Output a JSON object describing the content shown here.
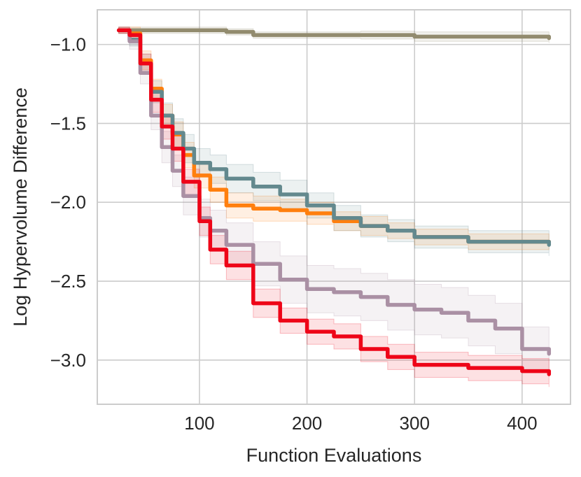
{
  "chart_data": {
    "type": "line",
    "title": "",
    "xlabel": "Function Evaluations",
    "ylabel": "Log Hypervolume Difference",
    "xlim": [
      5,
      445
    ],
    "ylim": [
      -3.28,
      -0.78
    ],
    "grid": true,
    "legend": "none",
    "x_ticks": [
      100,
      200,
      300,
      400
    ],
    "x_tick_labels": [
      "100",
      "200",
      "300",
      "400"
    ],
    "y_ticks": [
      -1.0,
      -1.5,
      -2.0,
      -2.5,
      -3.0
    ],
    "y_tick_labels": [
      "−1.0",
      "−1.5",
      "−2.0",
      "−2.5",
      "−3.0"
    ],
    "series": [
      {
        "name": "series-khaki",
        "color": "#928B6E",
        "x": [
          25,
          75,
          125,
          150,
          250,
          300,
          425
        ],
        "y": [
          -0.91,
          -0.91,
          -0.92,
          -0.94,
          -0.94,
          -0.95,
          -0.96
        ],
        "band": [
          0.02,
          0.02,
          0.02,
          0.02,
          0.025,
          0.03,
          0.03
        ]
      },
      {
        "name": "series-orange",
        "color": "#FF7F0E",
        "x": [
          25,
          35,
          45,
          55,
          65,
          75,
          85,
          95,
          110,
          125,
          150,
          175,
          200,
          225,
          250,
          275,
          300,
          350,
          425
        ],
        "y": [
          -0.91,
          -0.93,
          -1.1,
          -1.28,
          -1.45,
          -1.57,
          -1.7,
          -1.83,
          -1.92,
          -2.02,
          -2.04,
          -2.05,
          -2.07,
          -2.12,
          -2.15,
          -2.18,
          -2.22,
          -2.25,
          -2.25
        ],
        "band": [
          0.02,
          0.04,
          0.06,
          0.06,
          0.07,
          0.08,
          0.08,
          0.08,
          0.08,
          0.08,
          0.08,
          0.07,
          0.07,
          0.06,
          0.06,
          0.05,
          0.05,
          0.05,
          0.05
        ]
      },
      {
        "name": "series-slate",
        "color": "#63898E",
        "x": [
          25,
          35,
          45,
          55,
          65,
          75,
          85,
          95,
          110,
          125,
          150,
          175,
          200,
          225,
          250,
          275,
          300,
          350,
          425
        ],
        "y": [
          -0.91,
          -0.97,
          -1.12,
          -1.3,
          -1.45,
          -1.56,
          -1.66,
          -1.75,
          -1.79,
          -1.85,
          -1.9,
          -1.95,
          -2.02,
          -2.1,
          -2.15,
          -2.18,
          -2.22,
          -2.25,
          -2.27
        ],
        "band": [
          0.02,
          0.04,
          0.06,
          0.07,
          0.08,
          0.09,
          0.09,
          0.09,
          0.09,
          0.09,
          0.09,
          0.09,
          0.08,
          0.08,
          0.07,
          0.07,
          0.07,
          0.07,
          0.07
        ]
      },
      {
        "name": "series-mauve",
        "color": "#AA90A4",
        "x": [
          25,
          35,
          45,
          55,
          65,
          75,
          85,
          100,
          110,
          125,
          150,
          175,
          200,
          225,
          250,
          275,
          300,
          325,
          350,
          375,
          400,
          425
        ],
        "y": [
          -0.91,
          -0.98,
          -1.18,
          -1.45,
          -1.65,
          -1.8,
          -1.96,
          -2.1,
          -2.18,
          -2.27,
          -2.39,
          -2.49,
          -2.55,
          -2.57,
          -2.6,
          -2.65,
          -2.68,
          -2.7,
          -2.75,
          -2.8,
          -2.93,
          -2.96
        ],
        "band": [
          0.02,
          0.05,
          0.07,
          0.09,
          0.1,
          0.1,
          0.12,
          0.12,
          0.13,
          0.14,
          0.14,
          0.15,
          0.15,
          0.15,
          0.15,
          0.16,
          0.16,
          0.16,
          0.16,
          0.16,
          0.14,
          0.1
        ]
      },
      {
        "name": "series-red",
        "color": "#EE0518",
        "x": [
          25,
          35,
          45,
          55,
          65,
          75,
          85,
          100,
          110,
          125,
          150,
          175,
          200,
          225,
          250,
          275,
          300,
          350,
          400,
          425
        ],
        "y": [
          -0.91,
          -0.94,
          -1.12,
          -1.35,
          -1.52,
          -1.66,
          -1.87,
          -2.12,
          -2.3,
          -2.4,
          -2.64,
          -2.75,
          -2.82,
          -2.85,
          -2.93,
          -2.98,
          -3.03,
          -3.05,
          -3.07,
          -3.09
        ],
        "band": [
          0.02,
          0.04,
          0.06,
          0.08,
          0.08,
          0.08,
          0.08,
          0.09,
          0.09,
          0.09,
          0.09,
          0.08,
          0.08,
          0.08,
          0.08,
          0.08,
          0.08,
          0.08,
          0.08,
          0.08
        ]
      }
    ]
  }
}
